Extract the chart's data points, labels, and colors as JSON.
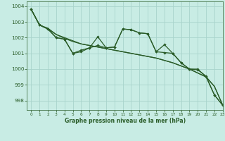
{
  "title": "Graphe pression niveau de la mer (hPa)",
  "bg_color": "#c8ece4",
  "grid_color": "#a8d4cc",
  "line_color": "#2a5c28",
  "xlim": [
    -0.5,
    23
  ],
  "ylim": [
    997.4,
    1004.3
  ],
  "yticks": [
    998,
    999,
    1000,
    1001,
    1002,
    1003,
    1004
  ],
  "xticks": [
    0,
    1,
    2,
    3,
    4,
    5,
    6,
    7,
    8,
    9,
    10,
    11,
    12,
    13,
    14,
    15,
    16,
    17,
    18,
    19,
    20,
    21,
    22,
    23
  ],
  "series": [
    {
      "y": [
        1003.8,
        1002.8,
        1002.6,
        1002.2,
        1002.0,
        1001.8,
        1001.6,
        1001.5,
        1001.4,
        1001.3,
        1001.2,
        1001.1,
        1001.0,
        1000.9,
        1000.8,
        1000.7,
        1000.55,
        1000.4,
        1000.2,
        1000.0,
        999.75,
        999.5,
        998.9,
        997.7
      ],
      "marker": false,
      "lw": 0.9
    },
    {
      "y": [
        1003.8,
        1002.8,
        1002.55,
        1002.2,
        1001.95,
        1001.75,
        1001.6,
        1001.5,
        1001.4,
        1001.3,
        1001.2,
        1001.1,
        1001.0,
        1000.9,
        1000.8,
        1000.7,
        1000.55,
        1000.4,
        1000.2,
        1000.0,
        999.75,
        999.5,
        998.9,
        997.7
      ],
      "marker": false,
      "lw": 0.9
    },
    {
      "y": [
        1003.8,
        1002.8,
        1002.55,
        1002.0,
        1001.9,
        1001.0,
        1001.1,
        1001.35,
        1001.5,
        1001.35,
        1001.4,
        1002.55,
        1002.5,
        1002.3,
        1002.25,
        1001.1,
        1001.05,
        1001.0,
        1000.4,
        1000.0,
        999.95,
        999.55,
        998.35,
        997.7
      ],
      "marker": true,
      "lw": 0.9
    },
    {
      "y": [
        1003.8,
        1002.8,
        1002.55,
        1002.0,
        1001.9,
        1001.0,
        1001.2,
        1001.35,
        1002.05,
        1001.35,
        1001.4,
        1002.55,
        1002.5,
        1002.3,
        1002.25,
        1001.1,
        1001.55,
        1001.0,
        1000.4,
        1000.0,
        1000.0,
        999.5,
        998.35,
        997.7
      ],
      "marker": true,
      "lw": 0.9
    }
  ]
}
